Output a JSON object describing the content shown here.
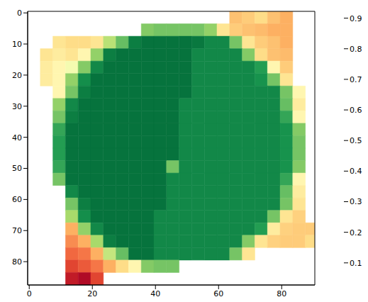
{
  "chart_data": {
    "type": "heatmap",
    "x": [
      1.5,
      5.5,
      9.5,
      13.5,
      17.5,
      21.5,
      25.5,
      29.5,
      33.5,
      37.5,
      41.5,
      45.5,
      49.5,
      53.5,
      57.5,
      61.5,
      65.5,
      69.5,
      73.5,
      77.5,
      81.5,
      85.5,
      89.5
    ],
    "y": [
      1.5,
      5.5,
      9.5,
      13.5,
      17.5,
      21.5,
      25.5,
      29.5,
      33.5,
      37.5,
      41.5,
      45.5,
      49.5,
      53.5,
      57.5,
      61.5,
      65.5,
      69.5,
      73.5,
      77.5,
      81.5,
      85.5
    ],
    "cells": [
      [
        null,
        null,
        null,
        null,
        null,
        null,
        null,
        null,
        null,
        null,
        null,
        null,
        null,
        null,
        null,
        null,
        0.33,
        0.35,
        0.38,
        0.33,
        0.3,
        null,
        null
      ],
      [
        null,
        null,
        null,
        null,
        null,
        null,
        null,
        null,
        null,
        0.7,
        0.72,
        0.72,
        0.72,
        0.72,
        0.68,
        0.4,
        0.35,
        0.33,
        0.32,
        0.3,
        0.3,
        null,
        null
      ],
      [
        null,
        null,
        0.4,
        0.38,
        0.38,
        0.4,
        0.62,
        0.74,
        0.88,
        0.9,
        0.9,
        0.9,
        0.9,
        0.89,
        0.86,
        0.86,
        0.72,
        0.4,
        0.35,
        0.33,
        0.3,
        null,
        null
      ],
      [
        null,
        0.4,
        0.42,
        0.4,
        0.45,
        0.68,
        0.88,
        0.9,
        0.9,
        0.9,
        0.9,
        0.9,
        0.9,
        0.86,
        0.86,
        0.86,
        0.86,
        0.7,
        0.38,
        0.33,
        0.32,
        null,
        null
      ],
      [
        null,
        0.42,
        0.45,
        0.5,
        0.7,
        0.86,
        0.9,
        0.9,
        0.9,
        0.9,
        0.9,
        0.9,
        0.9,
        0.86,
        0.86,
        0.86,
        0.86,
        0.86,
        0.82,
        0.45,
        0.35,
        null,
        null
      ],
      [
        null,
        0.42,
        0.45,
        0.68,
        0.85,
        0.9,
        0.9,
        0.9,
        0.9,
        0.9,
        0.9,
        0.9,
        0.9,
        0.86,
        0.86,
        0.86,
        0.86,
        0.86,
        0.84,
        0.72,
        0.4,
        null,
        null
      ],
      [
        null,
        null,
        0.45,
        0.72,
        0.88,
        0.9,
        0.9,
        0.9,
        0.9,
        0.9,
        0.9,
        0.9,
        0.9,
        0.86,
        0.86,
        0.86,
        0.86,
        0.86,
        0.86,
        0.86,
        0.72,
        0.45,
        null
      ],
      [
        null,
        null,
        0.68,
        0.86,
        0.9,
        0.9,
        0.9,
        0.9,
        0.9,
        0.9,
        0.9,
        0.9,
        0.86,
        0.86,
        0.86,
        0.86,
        0.86,
        0.86,
        0.86,
        0.86,
        0.74,
        0.42,
        null
      ],
      [
        null,
        null,
        0.72,
        0.88,
        0.9,
        0.9,
        0.9,
        0.9,
        0.9,
        0.9,
        0.9,
        0.9,
        0.86,
        0.86,
        0.86,
        0.86,
        0.86,
        0.86,
        0.86,
        0.86,
        0.8,
        0.45,
        null
      ],
      [
        null,
        null,
        0.8,
        0.9,
        0.9,
        0.9,
        0.9,
        0.9,
        0.9,
        0.9,
        0.9,
        0.9,
        0.86,
        0.86,
        0.86,
        0.86,
        0.86,
        0.86,
        0.86,
        0.86,
        0.84,
        0.7,
        null
      ],
      [
        null,
        null,
        0.82,
        0.9,
        0.9,
        0.9,
        0.9,
        0.9,
        0.9,
        0.9,
        0.9,
        0.9,
        0.86,
        0.86,
        0.86,
        0.86,
        0.86,
        0.86,
        0.86,
        0.86,
        0.84,
        0.72,
        null
      ],
      [
        null,
        null,
        0.82,
        0.9,
        0.9,
        0.9,
        0.9,
        0.9,
        0.9,
        0.9,
        0.9,
        0.9,
        0.86,
        0.86,
        0.86,
        0.86,
        0.86,
        0.86,
        0.86,
        0.86,
        0.84,
        0.72,
        null
      ],
      [
        null,
        null,
        0.8,
        0.9,
        0.9,
        0.9,
        0.9,
        0.9,
        0.9,
        0.9,
        0.9,
        0.72,
        0.86,
        0.86,
        0.86,
        0.86,
        0.86,
        0.86,
        0.86,
        0.86,
        0.84,
        0.7,
        null
      ],
      [
        null,
        null,
        0.72,
        0.9,
        0.9,
        0.9,
        0.9,
        0.9,
        0.9,
        0.9,
        0.9,
        0.86,
        0.86,
        0.86,
        0.86,
        0.86,
        0.86,
        0.86,
        0.86,
        0.86,
        0.8,
        0.45,
        null
      ],
      [
        null,
        null,
        null,
        0.86,
        0.9,
        0.9,
        0.9,
        0.9,
        0.9,
        0.9,
        0.9,
        0.86,
        0.86,
        0.86,
        0.86,
        0.86,
        0.86,
        0.86,
        0.86,
        0.86,
        0.74,
        0.42,
        null
      ],
      [
        null,
        null,
        null,
        0.72,
        0.88,
        0.9,
        0.9,
        0.9,
        0.9,
        0.9,
        0.9,
        0.86,
        0.86,
        0.86,
        0.86,
        0.86,
        0.86,
        0.86,
        0.86,
        0.86,
        0.72,
        0.4,
        null
      ],
      [
        null,
        null,
        null,
        0.65,
        0.85,
        0.9,
        0.9,
        0.9,
        0.9,
        0.9,
        0.86,
        0.86,
        0.86,
        0.86,
        0.86,
        0.86,
        0.86,
        0.86,
        0.86,
        0.72,
        0.4,
        0.36,
        null
      ],
      [
        null,
        null,
        null,
        0.3,
        0.68,
        0.86,
        0.9,
        0.9,
        0.9,
        0.9,
        0.86,
        0.86,
        0.86,
        0.86,
        0.86,
        0.86,
        0.86,
        0.86,
        0.82,
        0.42,
        0.36,
        0.35,
        0.35
      ],
      [
        null,
        null,
        null,
        0.25,
        0.3,
        0.65,
        0.88,
        0.9,
        0.9,
        0.9,
        0.86,
        0.86,
        0.86,
        0.86,
        0.86,
        0.86,
        0.86,
        0.7,
        0.4,
        0.36,
        0.35,
        0.35,
        0.38
      ],
      [
        null,
        null,
        null,
        0.2,
        0.22,
        0.3,
        0.6,
        0.74,
        0.9,
        0.9,
        0.86,
        0.86,
        0.86,
        0.86,
        0.86,
        0.86,
        0.72,
        0.4,
        null,
        null,
        null,
        null,
        null
      ],
      [
        null,
        null,
        null,
        0.15,
        0.18,
        0.22,
        0.3,
        0.38,
        0.45,
        0.7,
        0.72,
        0.72,
        null,
        null,
        null,
        null,
        null,
        null,
        null,
        null,
        null,
        null,
        null
      ],
      [
        null,
        null,
        null,
        0.08,
        0.05,
        0.15,
        null,
        null,
        null,
        null,
        null,
        null,
        null,
        null,
        null,
        null,
        null,
        null,
        null,
        null,
        null,
        null,
        null
      ]
    ],
    "xlim": [
      -0.5,
      90.5
    ],
    "ylim": [
      87.5,
      -0.5
    ],
    "xticks": [
      0,
      20,
      40,
      60,
      80
    ],
    "yticks": [
      0,
      10,
      20,
      30,
      40,
      50,
      60,
      70,
      80
    ],
    "colorbar": {
      "lim": [
        0.03,
        0.92
      ],
      "ticks": [
        0.1,
        0.2,
        0.3,
        0.4,
        0.5,
        0.6,
        0.7,
        0.8,
        0.9
      ]
    }
  }
}
